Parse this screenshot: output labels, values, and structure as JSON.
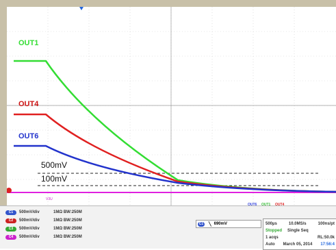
{
  "traces": [
    {
      "name": "OUT1",
      "color": "#33dd33"
    },
    {
      "name": "OUT4",
      "color": "#e02020"
    },
    {
      "name": "OUT6",
      "color": "#2233cc"
    }
  ],
  "annotations": {
    "level_500": "500mV",
    "level_100": "100mV"
  },
  "legend_labels": [
    "OUT6",
    "OUT1",
    "OUT4"
  ],
  "ref_marker": "V3U",
  "channels": [
    {
      "id": "C1",
      "scale": "500mV/div",
      "impedance": "1MΩ BW:250M",
      "color": "#3355cc"
    },
    {
      "id": "C2",
      "scale": "500mV/div",
      "impedance": "1MΩ BW:250M",
      "color": "#cc2222"
    },
    {
      "id": "C3",
      "scale": "500mV/div",
      "impedance": "1MΩ BW:250M",
      "color": "#33aa33"
    },
    {
      "id": "C4",
      "scale": "500mV/div",
      "impedance": "1MΩ BW:250M",
      "color": "#cc22cc"
    }
  ],
  "trigger": {
    "source": "C1",
    "level": "690mV"
  },
  "acquisition": {
    "timebase": "500µs",
    "rate": "10.0MS/s",
    "resolution": "100ns/pt",
    "state": "Stopped",
    "mode": "Single Seq",
    "acqs": "1 acqs",
    "record_length": "RL:50.0k",
    "trigger_mode": "Auto",
    "date": "March 05, 2014",
    "time": "17:56:4"
  }
}
